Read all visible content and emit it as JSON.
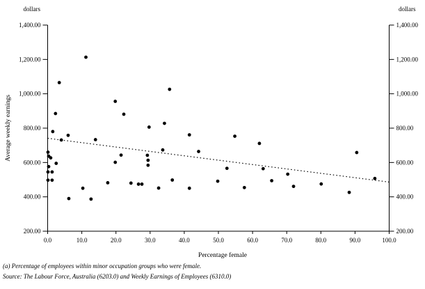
{
  "chart_data": {
    "type": "scatter",
    "title": "",
    "xlabel": "Percentage female",
    "ylabel": "Average weekly earnings",
    "unit_label": "dollars",
    "xlim": [
      0,
      100
    ],
    "ylim": [
      200,
      1400
    ],
    "grid": false,
    "legend": "none",
    "marker_color": "#000000",
    "x_ticks": [
      0,
      10,
      20,
      30,
      40,
      50,
      60,
      70,
      80,
      90,
      100
    ],
    "x_tick_labels": [
      "0.0",
      "10.0",
      "20.0",
      "30.0",
      "40.0",
      "50.0",
      "60.0",
      "70.0",
      "80.0",
      "90.0",
      "100.0"
    ],
    "y_ticks": [
      1400,
      1200,
      1000,
      800,
      600,
      400,
      200
    ],
    "y_tick_labels": [
      "1,400.00",
      "1,200.00",
      "1,000.00",
      "800.00",
      "600.00",
      "400.00",
      "200.00"
    ],
    "points": [
      [
        0.1,
        660
      ],
      [
        0.3,
        637
      ],
      [
        0.9,
        627
      ],
      [
        0.3,
        576
      ],
      [
        2.5,
        595
      ],
      [
        0.1,
        545
      ],
      [
        1.3,
        545
      ],
      [
        0.1,
        497
      ],
      [
        1.3,
        497
      ],
      [
        1.5,
        780
      ],
      [
        2.3,
        885
      ],
      [
        3.4,
        1065
      ],
      [
        4.0,
        731
      ],
      [
        6.0,
        758
      ],
      [
        6.2,
        390
      ],
      [
        10.3,
        450
      ],
      [
        11.2,
        1213
      ],
      [
        12.7,
        387
      ],
      [
        14.0,
        733
      ],
      [
        17.6,
        482
      ],
      [
        19.8,
        601
      ],
      [
        19.8,
        956
      ],
      [
        21.5,
        643
      ],
      [
        22.3,
        881
      ],
      [
        24.4,
        480
      ],
      [
        26.6,
        474
      ],
      [
        27.6,
        474
      ],
      [
        29.2,
        642
      ],
      [
        29.4,
        613
      ],
      [
        29.4,
        584
      ],
      [
        29.7,
        806
      ],
      [
        32.5,
        451
      ],
      [
        33.7,
        673
      ],
      [
        34.2,
        828
      ],
      [
        35.7,
        1026
      ],
      [
        36.5,
        498
      ],
      [
        41.5,
        450
      ],
      [
        41.5,
        761
      ],
      [
        44.2,
        664
      ],
      [
        49.8,
        491
      ],
      [
        52.5,
        566
      ],
      [
        54.8,
        753
      ],
      [
        57.6,
        454
      ],
      [
        62.0,
        711
      ],
      [
        63.1,
        564
      ],
      [
        65.6,
        494
      ],
      [
        70.3,
        532
      ],
      [
        72.0,
        461
      ],
      [
        80.1,
        475
      ],
      [
        88.3,
        426
      ],
      [
        90.5,
        658
      ],
      [
        95.8,
        507
      ]
    ],
    "trend_line": {
      "style": "dotted",
      "x1": 0,
      "y1": 741,
      "x2": 100,
      "y2": 486
    }
  },
  "footnotes": [
    "(a) Percentage of employees within minor occupation groups who were female.",
    "Source: The Labour Force, Australia (6203.0) and Weekly Earnings of Employees (6310.0)"
  ]
}
